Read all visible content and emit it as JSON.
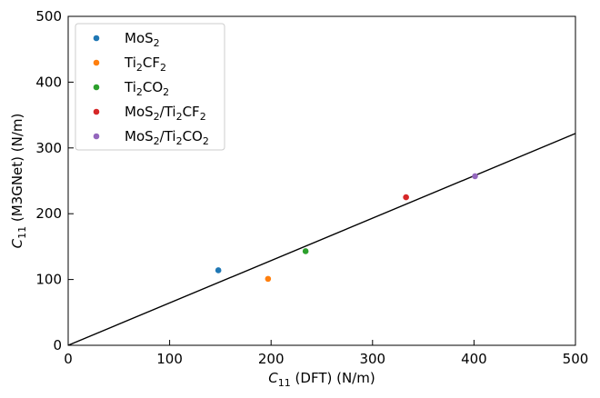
{
  "chart_data": {
    "type": "scatter",
    "title": "",
    "xlabel": {
      "sym": "C",
      "sub": "11",
      "rest": " (DFT) (N/m)"
    },
    "ylabel": {
      "sym": "C",
      "sub": "11",
      "rest": " (M3GNet) (N/m)"
    },
    "xlim": [
      0,
      500
    ],
    "ylim": [
      0,
      500
    ],
    "xticks": [
      0,
      100,
      200,
      300,
      400,
      500
    ],
    "yticks": [
      0,
      100,
      200,
      300,
      400,
      500
    ],
    "grid": false,
    "legend_position": "top-left",
    "reference_line": {
      "x": [
        0,
        500
      ],
      "y": [
        0,
        322
      ],
      "color": "#000000"
    },
    "series": [
      {
        "parts": [
          [
            "MoS",
            ""
          ],
          [
            "2",
            "sub"
          ]
        ],
        "color": "#1f77b4",
        "x": [
          148
        ],
        "y": [
          114
        ]
      },
      {
        "parts": [
          [
            "Ti",
            ""
          ],
          [
            "2",
            "sub"
          ],
          [
            "CF",
            ""
          ],
          [
            "2",
            "sub"
          ]
        ],
        "color": "#ff7f0e",
        "x": [
          197
        ],
        "y": [
          101
        ]
      },
      {
        "parts": [
          [
            "Ti",
            ""
          ],
          [
            "2",
            "sub"
          ],
          [
            "CO",
            ""
          ],
          [
            "2",
            "sub"
          ]
        ],
        "color": "#2ca02c",
        "x": [
          234
        ],
        "y": [
          143
        ]
      },
      {
        "parts": [
          [
            "MoS",
            ""
          ],
          [
            "2",
            "sub"
          ],
          [
            "/Ti",
            ""
          ],
          [
            "2",
            "sub"
          ],
          [
            "CF",
            ""
          ],
          [
            "2",
            "sub"
          ]
        ],
        "color": "#d62728",
        "x": [
          333
        ],
        "y": [
          225
        ]
      },
      {
        "parts": [
          [
            "MoS",
            ""
          ],
          [
            "2",
            "sub"
          ],
          [
            "/Ti",
            ""
          ],
          [
            "2",
            "sub"
          ],
          [
            "CO",
            ""
          ],
          [
            "2",
            "sub"
          ]
        ],
        "color": "#9467bd",
        "x": [
          401
        ],
        "y": [
          257
        ]
      }
    ]
  }
}
